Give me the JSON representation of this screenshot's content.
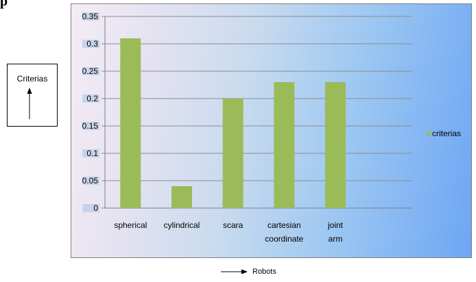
{
  "page": {
    "top_fragment": "p"
  },
  "chart_data": {
    "type": "bar",
    "categories": [
      "spherical",
      "cylindrical",
      "scara",
      "cartesian coordinate",
      "joint arm",
      ""
    ],
    "series": [
      {
        "name": "criterias",
        "values": [
          0.31,
          0.04,
          0.2,
          0.23,
          0.23,
          null
        ],
        "color": "#9bbb59"
      }
    ],
    "yticks": [
      "0",
      "0.05",
      "0.1",
      "0.15",
      "0.2",
      "0.25",
      "0.3",
      "0.35"
    ],
    "ylim": [
      0,
      0.35
    ],
    "ylabel": "Criterias",
    "xlabel": "Robots",
    "grid": true,
    "legend": "right"
  }
}
